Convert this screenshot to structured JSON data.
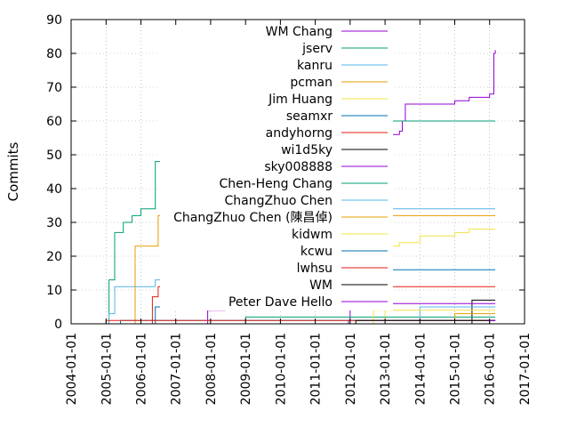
{
  "chart_data": {
    "type": "line",
    "title": "",
    "xlabel": "",
    "ylabel": "Commits",
    "ylim": [
      0,
      90
    ],
    "yticks": [
      0,
      10,
      20,
      30,
      40,
      50,
      60,
      70,
      80,
      90
    ],
    "xlim": [
      "2004-01-01",
      "2017-01-01"
    ],
    "xticks": [
      "2004-01-01",
      "2005-01-01",
      "2006-01-01",
      "2007-01-01",
      "2008-01-01",
      "2009-01-01",
      "2010-01-01",
      "2011-01-01",
      "2012-01-01",
      "2013-01-01",
      "2014-01-01",
      "2015-01-01",
      "2016-01-01",
      "2017-01-01"
    ],
    "grid": true,
    "legend_position": "top-right",
    "series": [
      {
        "name": "WM Chang",
        "color": "#9400d3",
        "points": [
          [
            "2011-11-01",
            0
          ],
          [
            "2011-12-15",
            1
          ],
          [
            "2012-01-01",
            47
          ],
          [
            "2012-03-01",
            48
          ],
          [
            "2012-06-01",
            55
          ],
          [
            "2012-09-01",
            55
          ],
          [
            "2013-01-01",
            56
          ],
          [
            "2013-06-01",
            57
          ],
          [
            "2013-07-01",
            60
          ],
          [
            "2013-08-01",
            65
          ],
          [
            "2014-01-01",
            65
          ],
          [
            "2014-12-01",
            65
          ],
          [
            "2015-01-01",
            66
          ],
          [
            "2015-06-01",
            67
          ],
          [
            "2016-01-01",
            68
          ],
          [
            "2016-02-15",
            80
          ],
          [
            "2016-03-01",
            81
          ]
        ]
      },
      {
        "name": "jserv",
        "color": "#009e73",
        "points": [
          [
            "2005-01-01",
            0
          ],
          [
            "2005-02-01",
            13
          ],
          [
            "2005-04-01",
            27
          ],
          [
            "2005-07-01",
            30
          ],
          [
            "2005-10-01",
            32
          ],
          [
            "2006-01-01",
            34
          ],
          [
            "2006-06-01",
            48
          ],
          [
            "2007-01-01",
            49
          ],
          [
            "2007-06-01",
            49
          ],
          [
            "2008-01-01",
            49
          ],
          [
            "2008-06-01",
            50
          ],
          [
            "2008-12-01",
            52
          ],
          [
            "2009-01-01",
            55
          ],
          [
            "2009-06-01",
            56
          ],
          [
            "2010-06-01",
            56
          ],
          [
            "2011-01-01",
            57
          ],
          [
            "2011-06-01",
            58
          ],
          [
            "2012-01-01",
            59
          ],
          [
            "2012-06-01",
            60
          ],
          [
            "2016-03-01",
            60
          ]
        ]
      },
      {
        "name": "kanru",
        "color": "#56b4e9",
        "points": [
          [
            "2005-01-01",
            0
          ],
          [
            "2005-02-01",
            3
          ],
          [
            "2005-04-01",
            11
          ],
          [
            "2006-06-01",
            13
          ],
          [
            "2007-06-01",
            14
          ],
          [
            "2008-06-01",
            15
          ],
          [
            "2008-10-01",
            20
          ],
          [
            "2009-01-01",
            33
          ],
          [
            "2010-01-01",
            34
          ],
          [
            "2016-03-01",
            34
          ]
        ]
      },
      {
        "name": "pcman",
        "color": "#e69f00",
        "points": [
          [
            "2005-10-01",
            0
          ],
          [
            "2005-11-01",
            23
          ],
          [
            "2006-05-01",
            23
          ],
          [
            "2006-07-01",
            32
          ],
          [
            "2016-03-01",
            32
          ]
        ]
      },
      {
        "name": "Jim Huang",
        "color": "#f0e442",
        "points": [
          [
            "2012-09-01",
            0
          ],
          [
            "2013-01-01",
            23
          ],
          [
            "2013-06-01",
            24
          ],
          [
            "2014-01-01",
            26
          ],
          [
            "2015-01-01",
            27
          ],
          [
            "2015-06-01",
            28
          ],
          [
            "2016-03-01",
            28
          ]
        ]
      },
      {
        "name": "seamxr",
        "color": "#0072b2",
        "points": [
          [
            "2006-02-01",
            0
          ],
          [
            "2006-06-01",
            5
          ],
          [
            "2006-12-01",
            13
          ],
          [
            "2007-06-01",
            16
          ],
          [
            "2016-03-01",
            16
          ]
        ]
      },
      {
        "name": "andyhorng",
        "color": "#e51e10",
        "points": [
          [
            "2006-03-01",
            0
          ],
          [
            "2006-05-01",
            8
          ],
          [
            "2006-07-01",
            11
          ],
          [
            "2016-03-01",
            11
          ]
        ]
      },
      {
        "name": "wi1d5ky",
        "color": "#000000",
        "points": [
          [
            "2015-06-01",
            0
          ],
          [
            "2015-07-01",
            7
          ],
          [
            "2016-03-01",
            7
          ]
        ]
      },
      {
        "name": "sky008888",
        "color": "#9400d3",
        "points": [
          [
            "2007-09-01",
            0
          ],
          [
            "2007-12-01",
            4
          ],
          [
            "2008-06-01",
            6
          ],
          [
            "2016-03-01",
            6
          ]
        ]
      },
      {
        "name": "Chen-Heng Chang",
        "color": "#009e73",
        "points": [
          [
            "2008-01-01",
            0
          ],
          [
            "2009-01-01",
            2
          ],
          [
            "2016-03-01",
            2
          ]
        ]
      },
      {
        "name": "ChangZhuo Chen",
        "color": "#56b4e9",
        "points": [
          [
            "2013-07-01",
            0
          ],
          [
            "2014-01-01",
            5
          ],
          [
            "2016-03-01",
            5
          ]
        ]
      },
      {
        "name": "ChangZhuo Chen (陳昌倬)",
        "color": "#e69f00",
        "points": [
          [
            "2014-06-01",
            0
          ],
          [
            "2015-01-01",
            3
          ],
          [
            "2016-03-01",
            3
          ]
        ]
      },
      {
        "name": "kidwm",
        "color": "#f0e442",
        "points": [
          [
            "2012-06-01",
            0
          ],
          [
            "2012-09-01",
            4
          ],
          [
            "2016-03-01",
            4
          ]
        ]
      },
      {
        "name": "kcwu",
        "color": "#0072b2",
        "points": [
          [
            "2005-01-01",
            0
          ],
          [
            "2005-06-01",
            1
          ],
          [
            "2016-03-01",
            1
          ]
        ]
      },
      {
        "name": "lwhsu",
        "color": "#e51e10",
        "points": [
          [
            "2004-06-01",
            0
          ],
          [
            "2005-01-01",
            1
          ],
          [
            "2016-03-01",
            1
          ]
        ]
      },
      {
        "name": "WM",
        "color": "#000000",
        "points": [
          [
            "2012-01-01",
            0
          ],
          [
            "2012-03-01",
            1
          ],
          [
            "2016-03-01",
            1
          ]
        ]
      },
      {
        "name": "Peter Dave Hello",
        "color": "#9400d3",
        "points": [
          [
            "2015-06-01",
            0
          ],
          [
            "2016-01-01",
            1
          ],
          [
            "2016-03-01",
            1
          ]
        ]
      }
    ]
  }
}
